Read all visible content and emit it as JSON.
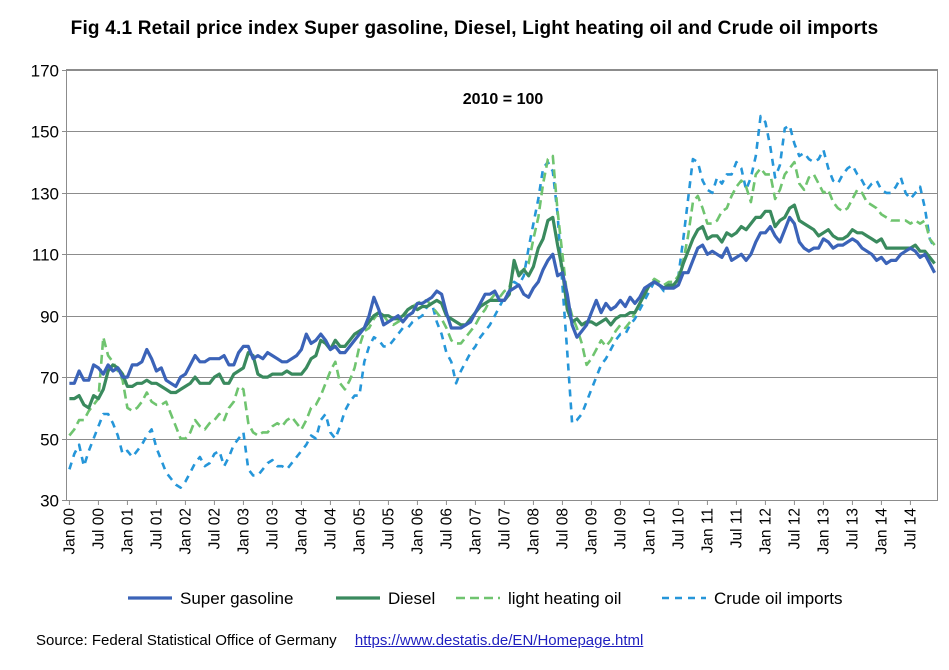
{
  "title": "Fig 4.1 Retail price index Super gasoline, Diesel, Light heating oil and Crude oil imports",
  "source_label": "Source: Federal Statistical  Office of Germany",
  "source_link": "https://www.destatis.de/EN/Homepage.html",
  "chart_data": {
    "type": "line",
    "annotation": "2010 = 100",
    "xlabel": "",
    "ylabel": "",
    "ylim": [
      30,
      170
    ],
    "yticks": [
      30,
      50,
      70,
      90,
      110,
      130,
      150,
      170
    ],
    "x_start": "Jan 00",
    "x_end": "Oct 14",
    "x_tick_labels": [
      "Jan 00",
      "Jul 00",
      "Jan 01",
      "Jul 01",
      "Jan 02",
      "Jul 02",
      "Jan 03",
      "Jul 03",
      "Jan 04",
      "Jul 04",
      "Jan 05",
      "Jul 05",
      "Jan 06",
      "Jul 06",
      "Jan 07",
      "Jul 07",
      "Jan 08",
      "Jul 08",
      "Jan 09",
      "Jul 09",
      "Jan 10",
      "Jul 10",
      "Jan 11",
      "Jul 11",
      "Jan 12",
      "Jul 12",
      "Jan 13",
      "Jul 13",
      "Jan 14",
      "Jul 14"
    ],
    "grid": "horizontal",
    "legend_position": "bottom",
    "series": [
      {
        "name": "Super gasoline",
        "color": "#3b63b8",
        "style": "solid",
        "values": [
          68,
          68,
          72,
          69,
          69,
          74,
          73,
          71,
          74,
          72,
          73,
          70,
          70,
          74,
          74,
          75,
          79,
          76,
          72,
          73,
          69,
          68,
          67,
          70,
          71,
          74,
          77,
          75,
          75,
          76,
          76,
          76,
          77,
          74,
          74,
          78,
          80,
          80,
          76,
          77,
          76,
          78,
          77,
          76,
          75,
          75,
          76,
          77,
          79,
          84,
          81,
          82,
          84,
          82,
          79,
          80,
          78,
          78,
          80,
          82,
          84,
          86,
          90,
          96,
          92,
          87,
          88,
          89,
          90,
          88,
          90,
          91,
          94,
          94,
          95,
          96,
          98,
          97,
          91,
          86,
          86,
          86,
          87,
          88,
          91,
          94,
          97,
          97,
          98,
          95,
          95,
          98,
          99,
          100,
          97,
          96,
          99,
          101,
          105,
          108,
          110,
          103,
          104,
          97,
          87,
          83,
          85,
          87,
          91,
          95,
          91,
          94,
          92,
          93,
          95,
          93,
          96,
          94,
          96,
          99,
          100,
          101,
          100,
          99,
          99,
          99,
          100,
          104,
          104,
          108,
          112,
          113,
          110,
          111,
          110,
          109,
          112,
          108,
          109,
          110,
          108,
          110,
          114,
          117,
          117,
          119,
          116,
          114,
          118,
          122,
          120,
          114,
          112,
          111,
          112,
          112,
          115,
          114,
          112,
          113,
          113,
          114,
          115,
          114,
          112,
          111,
          110,
          108,
          109,
          107,
          108,
          108,
          110,
          111,
          112,
          111,
          109,
          110,
          107,
          104
        ]
      },
      {
        "name": "Diesel",
        "color": "#3a8a5e",
        "style": "solid",
        "values": [
          63,
          63,
          64,
          61,
          60,
          64,
          63,
          66,
          72,
          74,
          73,
          71,
          67,
          67,
          68,
          68,
          69,
          68,
          68,
          67,
          66,
          65,
          65,
          66,
          67,
          68,
          70,
          68,
          68,
          68,
          70,
          71,
          68,
          68,
          71,
          72,
          73,
          78,
          77,
          71,
          70,
          70,
          71,
          71,
          71,
          72,
          71,
          71,
          71,
          73,
          76,
          77,
          82,
          81,
          79,
          82,
          80,
          80,
          82,
          84,
          85,
          86,
          88,
          90,
          91,
          90,
          90,
          89,
          89,
          90,
          92,
          93,
          92,
          93,
          93,
          94,
          95,
          94,
          90,
          89,
          88,
          87,
          87,
          89,
          91,
          93,
          94,
          95,
          95,
          95,
          95,
          97,
          108,
          103,
          105,
          103,
          106,
          112,
          115,
          121,
          122,
          113,
          105,
          92,
          88,
          89,
          87,
          88,
          88,
          87,
          88,
          89,
          87,
          89,
          90,
          90,
          91,
          91,
          94,
          97,
          100,
          101,
          100,
          99,
          100,
          100,
          102,
          107,
          111,
          115,
          118,
          119,
          115,
          116,
          116,
          114,
          117,
          116,
          117,
          119,
          118,
          120,
          122,
          122,
          124,
          124,
          119,
          121,
          122,
          125,
          126,
          121,
          120,
          119,
          118,
          116,
          117,
          118,
          116,
          115,
          115,
          116,
          118,
          117,
          117,
          116,
          115,
          114,
          115,
          112,
          112,
          112,
          112,
          112,
          112,
          113,
          111,
          111,
          109,
          107
        ]
      },
      {
        "name": "light heating oil",
        "color": "#6fc46f",
        "style": "dashed",
        "values": [
          51,
          53,
          56,
          56,
          59,
          61,
          63,
          83,
          77,
          75,
          72,
          69,
          60,
          59,
          60,
          62,
          65,
          62,
          61,
          61,
          62,
          58,
          54,
          50,
          50,
          52,
          56,
          54,
          53,
          55,
          56,
          58,
          56,
          60,
          62,
          67,
          66,
          55,
          52,
          51,
          52,
          52,
          54,
          55,
          54,
          56,
          57,
          55,
          53,
          56,
          60,
          61,
          64,
          68,
          72,
          75,
          68,
          66,
          69,
          73,
          80,
          85,
          86,
          89,
          91,
          90,
          88,
          87,
          88,
          89,
          92,
          93,
          94,
          95,
          95,
          93,
          91,
          89,
          86,
          82,
          81,
          81,
          83,
          85,
          87,
          90,
          92,
          95,
          97,
          96,
          98,
          99,
          106,
          104,
          105,
          107,
          115,
          122,
          133,
          141,
          142,
          124,
          110,
          96,
          90,
          86,
          81,
          74,
          76,
          79,
          82,
          80,
          82,
          85,
          87,
          86,
          88,
          91,
          94,
          97,
          100,
          102,
          101,
          100,
          101,
          101,
          103,
          108,
          116,
          127,
          129,
          125,
          120,
          120,
          121,
          124,
          125,
          129,
          132,
          134,
          132,
          127,
          136,
          138,
          136,
          136,
          128,
          131,
          136,
          138,
          140,
          133,
          131,
          135,
          136,
          133,
          130,
          131,
          127,
          125,
          124,
          125,
          128,
          131,
          130,
          127,
          126,
          125,
          123,
          122,
          121,
          121,
          121,
          121,
          120,
          121,
          120,
          121,
          115,
          113
        ]
      },
      {
        "name": "Crude oil imports",
        "color": "#2596d9",
        "style": "dashed",
        "values": [
          40,
          45,
          48,
          41,
          46,
          50,
          54,
          58,
          58,
          55,
          51,
          45,
          46,
          44,
          46,
          48,
          51,
          53,
          47,
          43,
          39,
          37,
          35,
          34,
          36,
          39,
          42,
          44,
          41,
          42,
          45,
          46,
          41,
          44,
          48,
          50,
          52,
          40,
          38,
          38,
          40,
          42,
          43,
          41,
          41,
          40,
          42,
          44,
          46,
          48,
          51,
          50,
          56,
          58,
          52,
          50,
          54,
          59,
          62,
          64,
          64,
          75,
          80,
          83,
          82,
          80,
          80,
          82,
          84,
          86,
          86,
          88,
          89,
          90,
          93,
          94,
          88,
          84,
          78,
          75,
          68,
          72,
          75,
          78,
          80,
          83,
          85,
          87,
          90,
          93,
          96,
          98,
          101,
          100,
          103,
          112,
          120,
          128,
          138,
          140,
          137,
          123,
          100,
          78,
          55,
          56,
          58,
          62,
          66,
          70,
          74,
          76,
          79,
          82,
          84,
          84,
          87,
          89,
          92,
          95,
          98,
          101,
          100,
          98,
          99,
          100,
          103,
          115,
          128,
          141,
          140,
          134,
          131,
          130,
          135,
          133,
          136,
          136,
          140,
          138,
          131,
          135,
          142,
          155,
          153,
          145,
          135,
          139,
          151,
          152,
          146,
          142,
          143,
          141,
          140,
          141,
          144,
          138,
          134,
          133,
          136,
          138,
          139,
          136,
          134,
          131,
          133,
          134,
          131,
          130,
          130,
          132,
          135,
          130,
          128,
          130,
          132,
          125,
          115,
          112
        ]
      }
    ]
  }
}
